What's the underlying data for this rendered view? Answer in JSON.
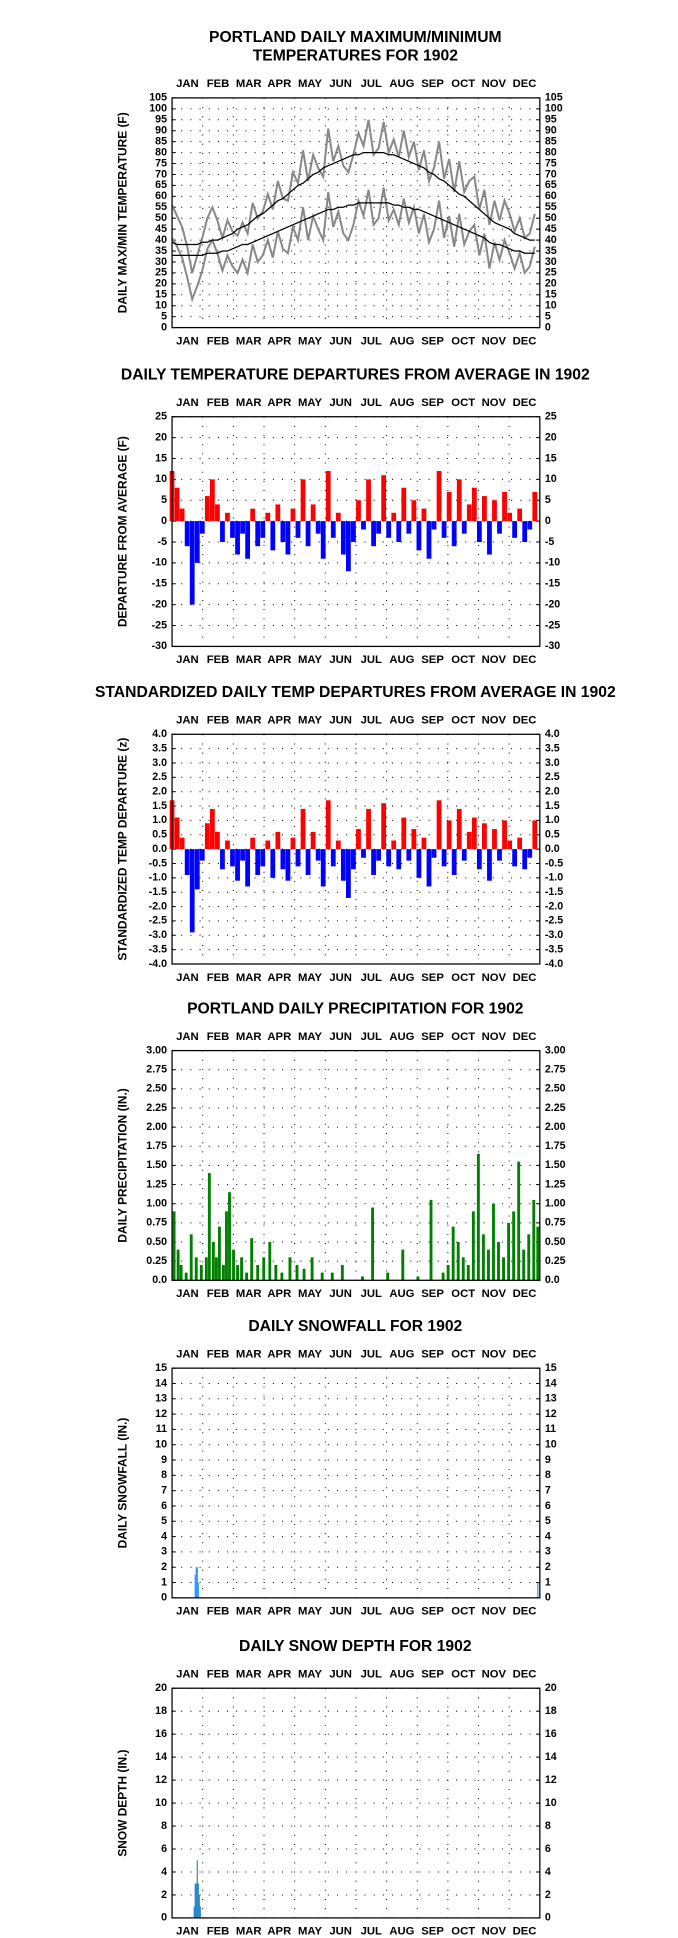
{
  "chart_data": [
    {
      "type": "line",
      "title": [
        "PORTLAND DAILY MAXIMUM/MINIMUM",
        "TEMPERATURES FOR 1902"
      ],
      "ylabel": "DAILY MAX/MIN TEMPERATURE (F)",
      "categories": [
        "JAN",
        "FEB",
        "MAR",
        "APR",
        "MAY",
        "JUN",
        "JUL",
        "AUG",
        "SEP",
        "OCT",
        "NOV",
        "DEC"
      ],
      "xlim": [
        1,
        366
      ],
      "ylim": [
        0,
        105
      ],
      "yticks": [
        0,
        5,
        10,
        15,
        20,
        25,
        30,
        35,
        40,
        45,
        50,
        55,
        60,
        65,
        70,
        75,
        80,
        85,
        90,
        95,
        100,
        105
      ],
      "grid": true,
      "x": [
        1,
        6,
        11,
        16,
        21,
        26,
        31,
        36,
        41,
        46,
        51,
        56,
        61,
        66,
        71,
        76,
        81,
        86,
        91,
        96,
        101,
        106,
        111,
        116,
        121,
        126,
        131,
        136,
        141,
        146,
        151,
        156,
        161,
        166,
        171,
        176,
        181,
        186,
        191,
        196,
        201,
        206,
        211,
        216,
        221,
        226,
        231,
        236,
        241,
        246,
        251,
        256,
        261,
        266,
        271,
        276,
        281,
        286,
        291,
        296,
        301,
        306,
        311,
        316,
        321,
        326,
        331,
        336,
        341,
        346,
        351,
        356,
        361
      ],
      "series": [
        {
          "color": "#888888",
          "values": [
            56,
            51,
            46,
            37,
            25,
            33,
            41,
            50,
            55,
            49,
            41,
            49,
            44,
            42,
            48,
            43,
            57,
            50,
            53,
            61,
            54,
            67,
            59,
            58,
            71,
            66,
            81,
            67,
            79,
            73,
            69,
            91,
            76,
            83,
            74,
            71,
            79,
            89,
            83,
            95,
            79,
            82,
            94,
            80,
            86,
            78,
            90,
            78,
            85,
            72,
            81,
            67,
            73,
            85,
            68,
            77,
            62,
            76,
            62,
            67,
            69,
            54,
            63,
            47,
            58,
            49,
            58,
            52,
            44,
            50,
            41,
            43,
            52
          ]
        },
        {
          "color": "#888888",
          "values": [
            41,
            37,
            32,
            23,
            13,
            19,
            26,
            36,
            40,
            34,
            26,
            33,
            28,
            25,
            31,
            25,
            38,
            30,
            33,
            40,
            32,
            44,
            36,
            34,
            46,
            40,
            55,
            40,
            51,
            45,
            40,
            62,
            46,
            53,
            43,
            40,
            47,
            58,
            51,
            63,
            47,
            50,
            64,
            49,
            54,
            47,
            59,
            48,
            55,
            43,
            52,
            39,
            45,
            58,
            41,
            51,
            37,
            52,
            38,
            44,
            47,
            33,
            43,
            27,
            39,
            31,
            40,
            34,
            27,
            34,
            25,
            28,
            37
          ]
        },
        {
          "color": "#000000",
          "values": [
            39,
            38,
            38,
            38,
            38,
            38,
            39,
            39,
            40,
            40,
            41,
            42,
            43,
            45,
            46,
            47,
            49,
            51,
            52,
            54,
            56,
            58,
            59,
            61,
            63,
            65,
            66,
            68,
            70,
            71,
            73,
            74,
            75,
            76,
            77,
            78,
            79,
            79,
            80,
            80,
            80,
            80,
            80,
            79,
            79,
            78,
            77,
            76,
            75,
            74,
            73,
            71,
            70,
            68,
            67,
            65,
            63,
            61,
            60,
            58,
            56,
            54,
            52,
            50,
            48,
            47,
            46,
            45,
            43,
            42,
            41,
            40,
            40
          ]
        },
        {
          "color": "#000000",
          "values": [
            33,
            33,
            33,
            33,
            33,
            33,
            33,
            34,
            34,
            34,
            35,
            35,
            36,
            37,
            38,
            38,
            39,
            40,
            41,
            42,
            43,
            44,
            45,
            46,
            47,
            48,
            49,
            50,
            51,
            52,
            53,
            54,
            54,
            55,
            55,
            56,
            56,
            57,
            57,
            57,
            57,
            57,
            57,
            57,
            56,
            56,
            55,
            55,
            54,
            54,
            53,
            52,
            51,
            50,
            49,
            48,
            47,
            46,
            45,
            44,
            43,
            42,
            41,
            39,
            38,
            38,
            37,
            36,
            35,
            35,
            34,
            34,
            34
          ]
        }
      ]
    },
    {
      "type": "bar",
      "title": [
        "DAILY TEMPERATURE DEPARTURES FROM AVERAGE IN 1902"
      ],
      "ylabel": "DEPARTURE FROM AVERAGE (F)",
      "categories": [
        "JAN",
        "FEB",
        "MAR",
        "APR",
        "MAY",
        "JUN",
        "JUL",
        "AUG",
        "SEP",
        "OCT",
        "NOV",
        "DEC"
      ],
      "xlim": [
        1,
        366
      ],
      "ylim": [
        -30,
        25
      ],
      "yticks": [
        -30,
        -25,
        -20,
        -15,
        -10,
        -5,
        0,
        5,
        10,
        15,
        20,
        25
      ],
      "grid": true,
      "color_positive": "#ff0000",
      "color_negative": "#0000ff",
      "x": [
        1,
        6,
        11,
        16,
        21,
        26,
        31,
        36,
        41,
        46,
        51,
        56,
        61,
        66,
        71,
        76,
        81,
        86,
        91,
        96,
        101,
        106,
        111,
        116,
        121,
        126,
        131,
        136,
        141,
        146,
        151,
        156,
        161,
        166,
        171,
        176,
        181,
        186,
        191,
        196,
        201,
        206,
        211,
        216,
        221,
        226,
        231,
        236,
        241,
        246,
        251,
        256,
        261,
        266,
        271,
        276,
        281,
        286,
        291,
        296,
        301,
        306,
        311,
        316,
        321,
        326,
        331,
        336,
        341,
        346,
        351,
        356,
        361
      ],
      "values": [
        12,
        8,
        3,
        -6,
        -20,
        -10,
        -3,
        6,
        10,
        4,
        -5,
        2,
        -4,
        -8,
        -3,
        -9,
        3,
        -6,
        -4,
        2,
        -7,
        4,
        -5,
        -8,
        3,
        -4,
        10,
        -6,
        4,
        -3,
        -9,
        12,
        -4,
        2,
        -8,
        -12,
        -5,
        5,
        -2,
        10,
        -6,
        -3,
        11,
        -4,
        2,
        -5,
        8,
        -3,
        5,
        -7,
        3,
        -9,
        -2,
        12,
        -4,
        7,
        -6,
        10,
        -3,
        4,
        8,
        -5,
        6,
        -8,
        5,
        -3,
        7,
        2,
        -4,
        3,
        -5,
        -2,
        7
      ]
    },
    {
      "type": "bar",
      "title": [
        "STANDARDIZED DAILY TEMP DEPARTURES FROM AVERAGE IN 1902"
      ],
      "ylabel": "STANDARDIZED TEMP DEPARTURE (z)",
      "categories": [
        "JAN",
        "FEB",
        "MAR",
        "APR",
        "MAY",
        "JUN",
        "JUL",
        "AUG",
        "SEP",
        "OCT",
        "NOV",
        "DEC"
      ],
      "xlim": [
        1,
        366
      ],
      "ylim": [
        -4,
        4
      ],
      "yticks": [
        {
          "value": -4,
          "label": "-4.0"
        },
        -3.5,
        {
          "value": -3,
          "label": "-3.0"
        },
        -2.5,
        {
          "value": -2,
          "label": "-2.0"
        },
        -1.5,
        {
          "value": -1,
          "label": "-1.0"
        },
        -0.5,
        {
          "value": 0,
          "label": "0.0"
        },
        0.5,
        {
          "value": 1,
          "label": "1.0"
        },
        1.5,
        {
          "value": 2,
          "label": "2.0"
        },
        2.5,
        {
          "value": 3,
          "label": "3.0"
        },
        3.5,
        {
          "value": 4,
          "label": "4.0"
        }
      ],
      "grid": true,
      "color_positive": "#ff0000",
      "color_negative": "#0000ff",
      "x": [
        1,
        6,
        11,
        16,
        21,
        26,
        31,
        36,
        41,
        46,
        51,
        56,
        61,
        66,
        71,
        76,
        81,
        86,
        91,
        96,
        101,
        106,
        111,
        116,
        121,
        126,
        131,
        136,
        141,
        146,
        151,
        156,
        161,
        166,
        171,
        176,
        181,
        186,
        191,
        196,
        201,
        206,
        211,
        216,
        221,
        226,
        231,
        236,
        241,
        246,
        251,
        256,
        261,
        266,
        271,
        276,
        281,
        286,
        291,
        296,
        301,
        306,
        311,
        316,
        321,
        326,
        331,
        336,
        341,
        346,
        351,
        356,
        361
      ],
      "values": [
        1.7,
        1.1,
        0.4,
        -0.9,
        -2.9,
        -1.4,
        -0.4,
        0.9,
        1.4,
        0.6,
        -0.7,
        0.3,
        -0.6,
        -1.1,
        -0.4,
        -1.3,
        0.4,
        -0.9,
        -0.6,
        0.3,
        -1.0,
        0.6,
        -0.7,
        -1.1,
        0.4,
        -0.6,
        1.4,
        -0.9,
        0.6,
        -0.4,
        -1.3,
        1.7,
        -0.6,
        0.3,
        -1.1,
        -1.7,
        -0.7,
        0.7,
        -0.3,
        1.4,
        -0.9,
        -0.4,
        1.6,
        -0.6,
        0.3,
        -0.7,
        1.1,
        -0.4,
        0.7,
        -1.0,
        0.4,
        -1.3,
        -0.3,
        1.7,
        -0.6,
        1.0,
        -0.9,
        1.4,
        -0.4,
        0.6,
        1.1,
        -0.7,
        0.9,
        -1.1,
        0.7,
        -0.4,
        1.0,
        0.3,
        -0.6,
        0.4,
        -0.7,
        -0.3,
        1.0
      ]
    },
    {
      "type": "bar",
      "title": [
        "PORTLAND DAILY PRECIPITATION FOR 1902"
      ],
      "ylabel": "DAILY PRECIPITATION (IN.)",
      "categories": [
        "JAN",
        "FEB",
        "MAR",
        "APR",
        "MAY",
        "JUN",
        "JUL",
        "AUG",
        "SEP",
        "OCT",
        "NOV",
        "DEC"
      ],
      "xlim": [
        1,
        366
      ],
      "ylim": [
        0,
        3
      ],
      "yticks": [
        {
          "value": 0,
          "label": "0.0"
        },
        0.25,
        {
          "value": 0.5,
          "label": "0.50"
        },
        0.75,
        {
          "value": 1,
          "label": "1.00"
        },
        1.25,
        {
          "value": 1.5,
          "label": "1.50"
        },
        1.75,
        {
          "value": 2,
          "label": "2.00"
        },
        2.25,
        {
          "value": 2.5,
          "label": "2.50"
        },
        2.75,
        {
          "value": 3,
          "label": "3.00"
        }
      ],
      "grid": true,
      "color": "#008000",
      "x": [
        3,
        7,
        10,
        15,
        20,
        25,
        30,
        35,
        38,
        42,
        45,
        48,
        52,
        55,
        58,
        62,
        66,
        70,
        75,
        80,
        86,
        92,
        98,
        104,
        110,
        118,
        125,
        132,
        140,
        150,
        160,
        170,
        190,
        200,
        215,
        230,
        245,
        258,
        270,
        275,
        280,
        285,
        290,
        295,
        300,
        305,
        310,
        315,
        320,
        325,
        330,
        335,
        340,
        345,
        350,
        355,
        360,
        364
      ],
      "values": [
        0.9,
        0.4,
        0.2,
        0.1,
        0.6,
        0.3,
        0.2,
        0.3,
        1.4,
        0.5,
        0.3,
        0.7,
        0.2,
        0.9,
        1.15,
        0.4,
        0.2,
        0.3,
        0.1,
        0.55,
        0.2,
        0.3,
        0.5,
        0.2,
        0.1,
        0.3,
        0.2,
        0.15,
        0.3,
        0.1,
        0.1,
        0.2,
        0.05,
        0.95,
        0.1,
        0.4,
        0.05,
        1.05,
        0.1,
        0.2,
        0.7,
        0.5,
        0.3,
        0.2,
        0.9,
        1.65,
        0.6,
        0.4,
        1.0,
        0.5,
        0.3,
        0.75,
        0.9,
        1.55,
        0.4,
        0.6,
        1.05,
        0.7
      ]
    },
    {
      "type": "bar",
      "title": [
        "DAILY SNOWFALL FOR 1902"
      ],
      "ylabel": "DAILY SNOWFALL (IN.)",
      "categories": [
        "JAN",
        "FEB",
        "MAR",
        "APR",
        "MAY",
        "JUN",
        "JUL",
        "AUG",
        "SEP",
        "OCT",
        "NOV",
        "DEC"
      ],
      "xlim": [
        1,
        366
      ],
      "ylim": [
        0,
        15
      ],
      "yticks": [
        0,
        1,
        2,
        3,
        4,
        5,
        6,
        7,
        8,
        9,
        10,
        11,
        12,
        13,
        14,
        15
      ],
      "grid": true,
      "color": "#1e90ff",
      "x": [
        24,
        25,
        26,
        27,
        364
      ],
      "values": [
        1.5,
        2,
        2,
        1,
        1
      ]
    },
    {
      "type": "bar",
      "title": [
        "DAILY SNOW DEPTH FOR 1902"
      ],
      "ylabel": "SNOW DEPTH (IN.)",
      "categories": [
        "JAN",
        "FEB",
        "MAR",
        "APR",
        "MAY",
        "JUN",
        "JUL",
        "AUG",
        "SEP",
        "OCT",
        "NOV",
        "DEC"
      ],
      "xlim": [
        1,
        366
      ],
      "ylim": [
        0,
        20
      ],
      "yticks": [
        0,
        2,
        4,
        6,
        8,
        10,
        12,
        14,
        16,
        18,
        20
      ],
      "grid": true,
      "color": "#1a7fc4",
      "x": [
        23,
        24,
        25,
        26,
        27,
        28,
        29
      ],
      "values": [
        1,
        3,
        3,
        5,
        3,
        2,
        1
      ]
    }
  ]
}
